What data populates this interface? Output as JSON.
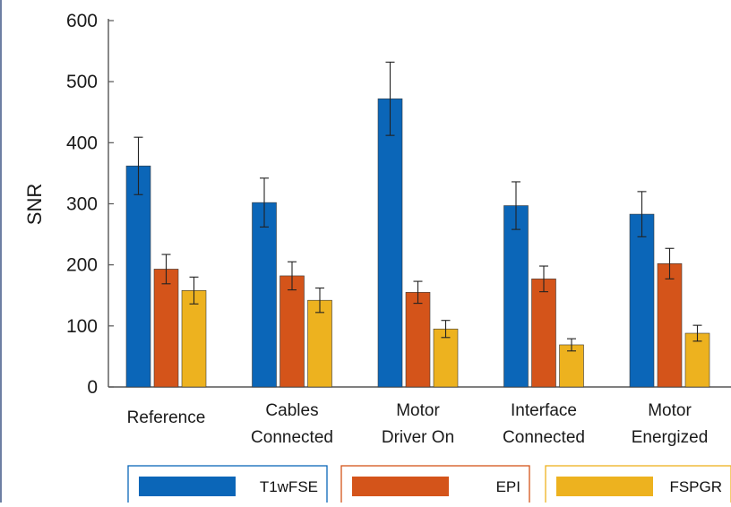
{
  "chart_data": {
    "type": "bar",
    "ylabel": "SNR",
    "ylim": [
      0,
      600
    ],
    "yticks": [
      0,
      100,
      200,
      300,
      400,
      500,
      600
    ],
    "categories": [
      [
        "Reference"
      ],
      [
        "Cables",
        "Connected"
      ],
      [
        "Motor",
        "Driver On"
      ],
      [
        "Interface",
        "Connected"
      ],
      [
        "Motor",
        "Energized"
      ]
    ],
    "series": [
      {
        "name": "T1wFSE",
        "color": "#0b66b8",
        "values": [
          362,
          302,
          472,
          297,
          283
        ],
        "errors": [
          47,
          40,
          60,
          39,
          37
        ]
      },
      {
        "name": "EPI",
        "color": "#d4541a",
        "values": [
          193,
          182,
          155,
          177,
          202
        ],
        "errors": [
          24,
          23,
          18,
          21,
          25
        ]
      },
      {
        "name": "FSPGR",
        "color": "#edb21f",
        "values": [
          158,
          142,
          95,
          69,
          88
        ],
        "errors": [
          22,
          20,
          14,
          10,
          13
        ]
      }
    ],
    "error_bars": true,
    "grid": false,
    "legend_position": "bottom"
  }
}
